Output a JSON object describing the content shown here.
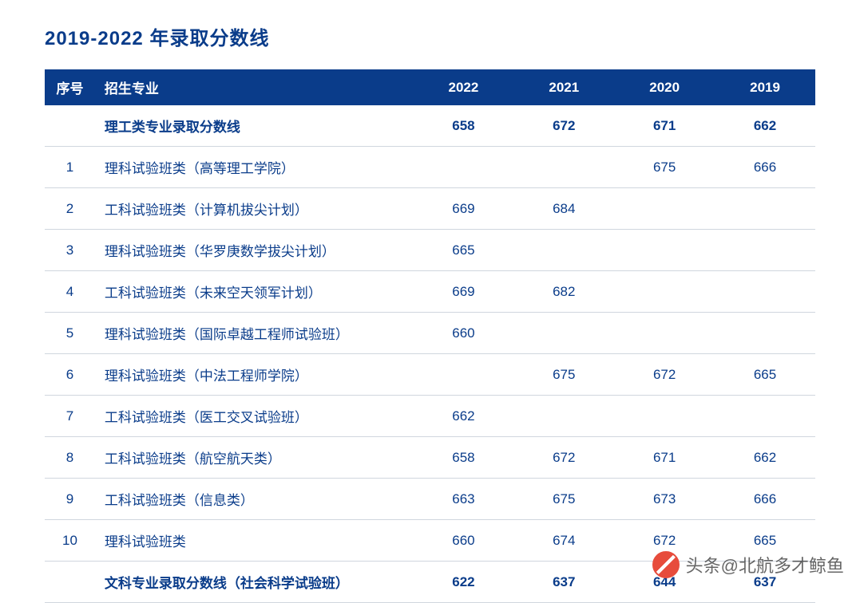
{
  "title": "2019-2022 年录取分数线",
  "header": {
    "idx": "序号",
    "major": "招生专业",
    "years": [
      "2022",
      "2021",
      "2020",
      "2019"
    ]
  },
  "rows": [
    {
      "bold": true,
      "idx": "",
      "major": "理工类专业录取分数线",
      "y2022": "658",
      "y2021": "672",
      "y2020": "671",
      "y2019": "662"
    },
    {
      "bold": false,
      "idx": "1",
      "major": "理科试验班类（高等理工学院）",
      "y2022": "",
      "y2021": "",
      "y2020": "675",
      "y2019": "666"
    },
    {
      "bold": false,
      "idx": "2",
      "major": "工科试验班类（计算机拔尖计划）",
      "y2022": "669",
      "y2021": "684",
      "y2020": "",
      "y2019": ""
    },
    {
      "bold": false,
      "idx": "3",
      "major": "理科试验班类（华罗庚数学拔尖计划）",
      "y2022": "665",
      "y2021": "",
      "y2020": "",
      "y2019": ""
    },
    {
      "bold": false,
      "idx": "4",
      "major": "工科试验班类（未来空天领军计划）",
      "y2022": "669",
      "y2021": "682",
      "y2020": "",
      "y2019": ""
    },
    {
      "bold": false,
      "idx": "5",
      "major": "理科试验班类（国际卓越工程师试验班）",
      "y2022": "660",
      "y2021": "",
      "y2020": "",
      "y2019": ""
    },
    {
      "bold": false,
      "idx": "6",
      "major": "理科试验班类（中法工程师学院）",
      "y2022": "",
      "y2021": "675",
      "y2020": "672",
      "y2019": "665"
    },
    {
      "bold": false,
      "idx": "7",
      "major": "工科试验班类（医工交叉试验班）",
      "y2022": "662",
      "y2021": "",
      "y2020": "",
      "y2019": ""
    },
    {
      "bold": false,
      "idx": "8",
      "major": "工科试验班类（航空航天类）",
      "y2022": "658",
      "y2021": "672",
      "y2020": "671",
      "y2019": "662"
    },
    {
      "bold": false,
      "idx": "9",
      "major": "工科试验班类（信息类）",
      "y2022": "663",
      "y2021": "675",
      "y2020": "673",
      "y2019": "666"
    },
    {
      "bold": false,
      "idx": "10",
      "major": "理科试验班类",
      "y2022": "660",
      "y2021": "674",
      "y2020": "672",
      "y2019": "665"
    },
    {
      "bold": true,
      "idx": "",
      "major": "文科专业录取分数线（社会科学试验班）",
      "y2022": "622",
      "y2021": "637",
      "y2020": "644",
      "y2019": "637"
    }
  ],
  "watermark": "头条@北航多才鲸鱼",
  "styling": {
    "header_bg": "#0a3c8a",
    "header_text": "#ffffff",
    "body_text": "#0a3c8a",
    "title_color": "#0a3c8a",
    "border_color": "#d0d6de",
    "background": "#ffffff",
    "title_fontsize": 24,
    "header_fontsize": 17,
    "cell_fontsize": 17,
    "col_widths": {
      "idx": 60,
      "major": 380,
      "year": 120
    },
    "watermark_logo_color": "#e74c3c"
  }
}
